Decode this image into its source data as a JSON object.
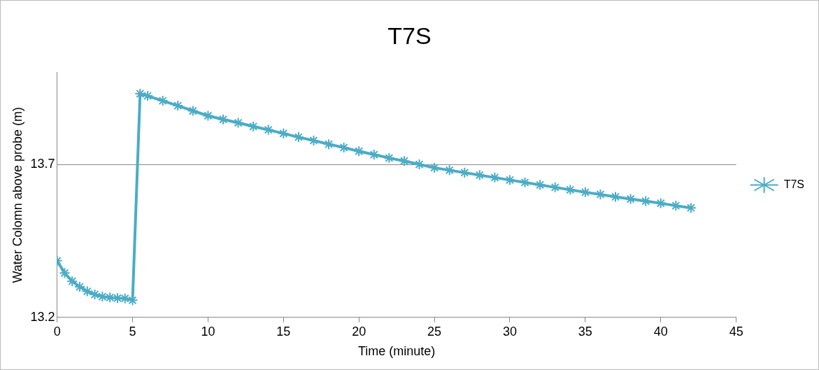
{
  "chart_data": {
    "type": "line",
    "title": "T7S",
    "xlabel": "Time (minute)",
    "ylabel": "Water Colomn above probe (m)",
    "x": [
      0,
      0.5,
      1,
      1.5,
      2,
      2.5,
      3,
      3.5,
      4,
      4.5,
      5,
      5.5,
      6,
      7,
      8,
      9,
      10,
      11,
      12,
      13,
      14,
      15,
      16,
      17,
      18,
      19,
      20,
      21,
      22,
      23,
      24,
      25,
      26,
      27,
      28,
      29,
      30,
      31,
      32,
      33,
      34,
      35,
      36,
      37,
      38,
      39,
      40,
      41,
      42
    ],
    "series": [
      {
        "name": "T7S",
        "color": "#4bacc6",
        "values": [
          13.385,
          13.345,
          13.318,
          13.3,
          13.285,
          13.275,
          13.268,
          13.265,
          13.263,
          13.262,
          13.256,
          13.931,
          13.924,
          13.908,
          13.892,
          13.875,
          13.859,
          13.847,
          13.836,
          13.824,
          13.813,
          13.801,
          13.789,
          13.778,
          13.766,
          13.755,
          13.743,
          13.732,
          13.721,
          13.711,
          13.7,
          13.689,
          13.681,
          13.673,
          13.665,
          13.657,
          13.649,
          13.641,
          13.633,
          13.625,
          13.617,
          13.609,
          13.602,
          13.594,
          13.587,
          13.58,
          13.573,
          13.565,
          13.558
        ]
      }
    ],
    "xlim": [
      0,
      45
    ],
    "xticks": [
      0,
      5,
      10,
      15,
      20,
      25,
      30,
      35,
      40,
      45
    ],
    "ylim": [
      13.2,
      14.0
    ],
    "yticks": [
      13.2,
      13.7
    ],
    "grid": "y",
    "legend": "right",
    "marker": "cross",
    "line_style": "solid"
  }
}
